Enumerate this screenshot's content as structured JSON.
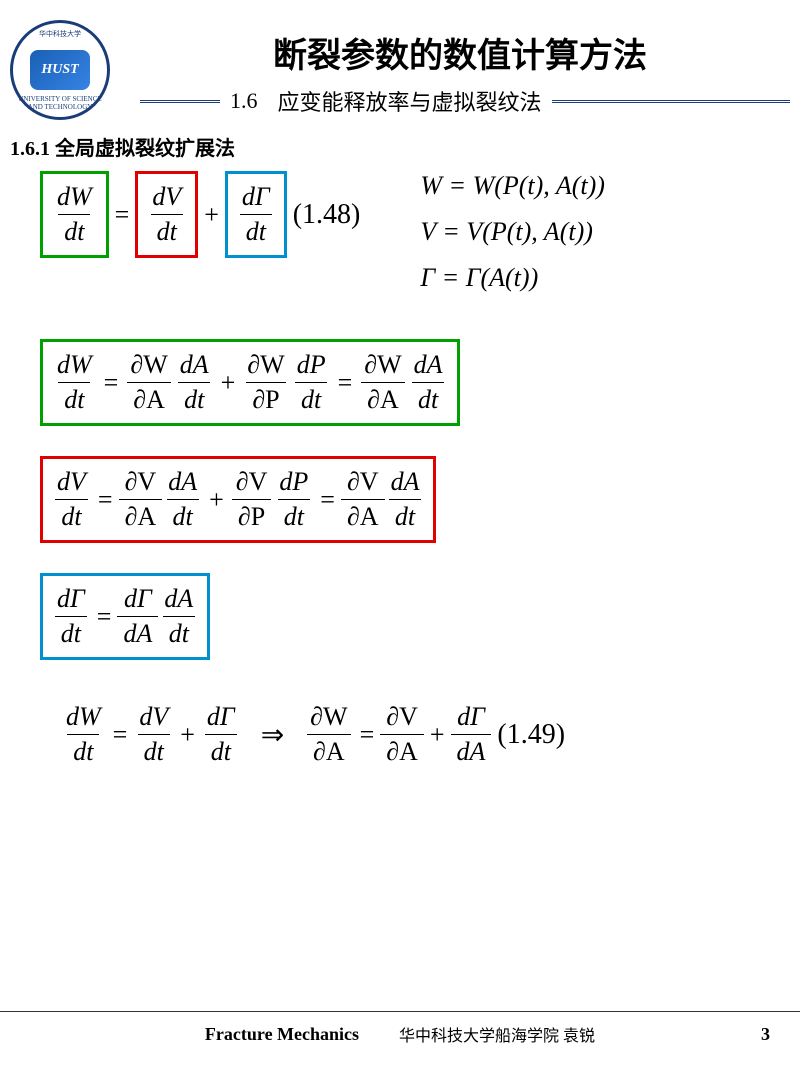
{
  "logo": {
    "abbr": "HUST",
    "ring_top": "华中科技大学",
    "ring_bottom": "UNIVERSITY OF SCIENCE AND TECHNOLOGY"
  },
  "header": {
    "title": "断裂参数的数值计算方法",
    "section_num": "1.6",
    "section_name": "应变能释放率与虚拟裂纹法"
  },
  "section": {
    "heading": "1.6.1 全局虚拟裂纹扩展法"
  },
  "colors": {
    "green": "#00a000",
    "red": "#e00000",
    "blue": "#0090d0",
    "header_rule": "#1a3d7a",
    "background": "#ffffff"
  },
  "equations": {
    "eq148": {
      "terms": [
        {
          "num": "dW",
          "den": "dt",
          "box_color": "green"
        },
        {
          "num": "dV",
          "den": "dt",
          "box_color": "red"
        },
        {
          "num": "dΓ",
          "den": "dt",
          "box_color": "blue"
        }
      ],
      "label": "(1.48)"
    },
    "definitions": [
      "W = W(P(t), A(t))",
      "V = V(P(t), A(t))",
      "Γ = Γ(A(t))"
    ],
    "expansion_W": {
      "box_color": "green",
      "lhs": {
        "num": "dW",
        "den": "dt"
      },
      "rhs1": [
        {
          "num": "∂W",
          "den": "∂A"
        },
        {
          "num": "dA",
          "den": "dt"
        },
        {
          "num": "∂W",
          "den": "∂P"
        },
        {
          "num": "dP",
          "den": "dt"
        }
      ],
      "rhs2": [
        {
          "num": "∂W",
          "den": "∂A"
        },
        {
          "num": "dA",
          "den": "dt"
        }
      ]
    },
    "expansion_V": {
      "box_color": "red",
      "lhs": {
        "num": "dV",
        "den": "dt"
      },
      "rhs1": [
        {
          "num": "∂V",
          "den": "∂A"
        },
        {
          "num": "dA",
          "den": "dt"
        },
        {
          "num": "∂V",
          "den": "∂P"
        },
        {
          "num": "dP",
          "den": "dt"
        }
      ],
      "rhs2": [
        {
          "num": "∂V",
          "den": "∂A"
        },
        {
          "num": "dA",
          "den": "dt"
        }
      ]
    },
    "expansion_G": {
      "box_color": "blue",
      "lhs": {
        "num": "dΓ",
        "den": "dt"
      },
      "rhs": [
        {
          "num": "dΓ",
          "den": "dA"
        },
        {
          "num": "dA",
          "den": "dt"
        }
      ]
    },
    "eq149": {
      "left": [
        {
          "num": "dW",
          "den": "dt"
        },
        {
          "num": "dV",
          "den": "dt"
        },
        {
          "num": "dΓ",
          "den": "dt"
        }
      ],
      "right": [
        {
          "num": "∂W",
          "den": "∂A"
        },
        {
          "num": "∂V",
          "den": "∂A"
        },
        {
          "num": "dΓ",
          "den": "dA"
        }
      ],
      "label": "(1.49)"
    }
  },
  "footer": {
    "course": "Fracture Mechanics",
    "attribution": "华中科技大学船海学院 袁锐",
    "page": "3"
  }
}
